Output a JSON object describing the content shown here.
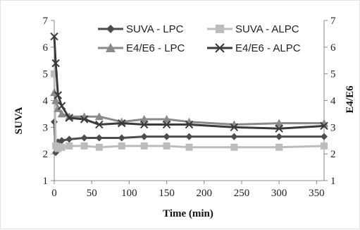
{
  "chart_data": {
    "type": "line",
    "xlabel": "Time (min)",
    "ylabel": "SUVA",
    "y2label": "E4/E6",
    "xlim": [
      0,
      360
    ],
    "ylim": [
      1,
      7
    ],
    "y2lim": [
      1,
      7
    ],
    "x_ticks": [
      "0",
      "50",
      "100",
      "150",
      "200",
      "250",
      "300",
      "350"
    ],
    "y_ticks": [
      "1",
      "2",
      "3",
      "4",
      "5",
      "6",
      "7"
    ],
    "y2_ticks": [
      "1",
      "2",
      "3",
      "4",
      "5",
      "6",
      "7"
    ],
    "grid": false,
    "legend_position": "top-right",
    "series": [
      {
        "name": "SUVA - LPC",
        "axis": "left",
        "marker": "diamond",
        "color": "#4d4d4d",
        "x": [
          0,
          2,
          5,
          10,
          20,
          40,
          60,
          90,
          120,
          150,
          180,
          240,
          300,
          360
        ],
        "y": [
          3.2,
          2.05,
          2.45,
          2.5,
          2.55,
          2.6,
          2.6,
          2.6,
          2.65,
          2.65,
          2.65,
          2.65,
          2.65,
          2.65
        ]
      },
      {
        "name": "SUVA - ALPC",
        "axis": "left",
        "marker": "square",
        "color": "#bcbcbc",
        "x": [
          0,
          2,
          5,
          10,
          20,
          40,
          60,
          90,
          120,
          150,
          180,
          240,
          300,
          360
        ],
        "y": [
          5.0,
          2.3,
          2.2,
          2.25,
          2.3,
          2.3,
          2.25,
          2.3,
          2.3,
          2.3,
          2.25,
          2.25,
          2.25,
          2.3
        ]
      },
      {
        "name": "E4/E6 - LPC",
        "axis": "right",
        "marker": "triangle",
        "color": "#8a8a8a",
        "x": [
          0,
          2,
          5,
          10,
          20,
          40,
          60,
          90,
          120,
          150,
          180,
          240,
          300,
          360
        ],
        "y": [
          4.3,
          4.0,
          3.7,
          3.5,
          3.4,
          3.4,
          3.4,
          3.2,
          3.3,
          3.3,
          3.2,
          3.1,
          3.15,
          3.15
        ]
      },
      {
        "name": "E4/E6 - ALPC",
        "axis": "right",
        "marker": "x",
        "color": "#3a3a3a",
        "x": [
          0,
          2,
          5,
          10,
          20,
          40,
          60,
          90,
          120,
          150,
          180,
          240,
          300,
          360
        ],
        "y": [
          6.4,
          5.4,
          4.2,
          3.8,
          3.35,
          3.3,
          3.1,
          3.15,
          3.1,
          3.1,
          3.1,
          3.0,
          2.95,
          3.05
        ]
      }
    ]
  }
}
